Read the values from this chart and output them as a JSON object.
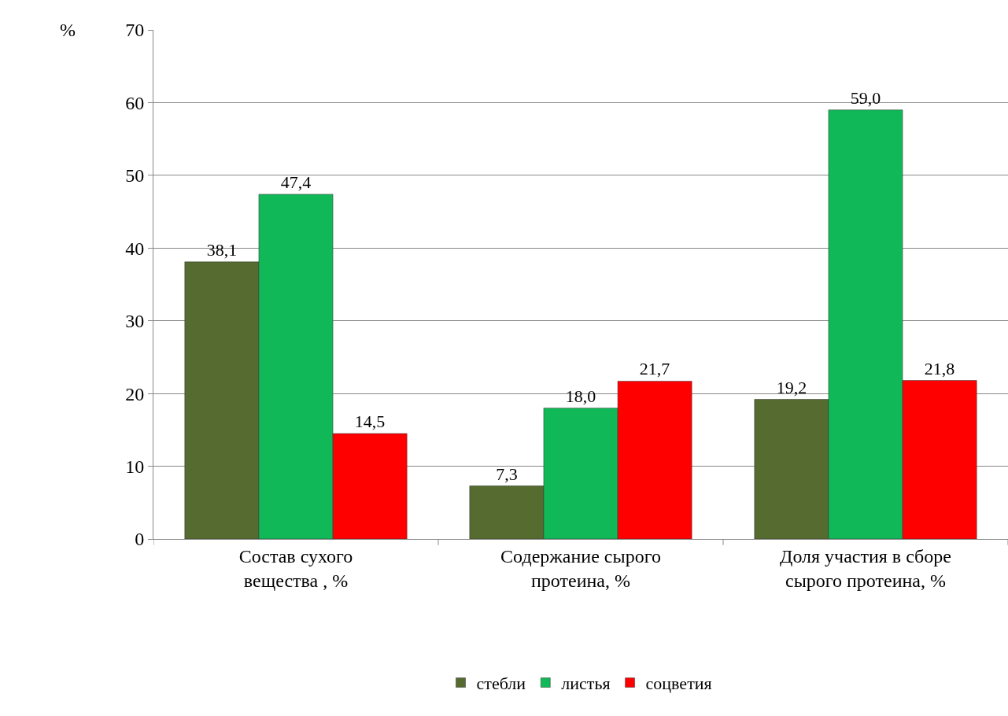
{
  "chart_data": {
    "type": "bar",
    "ylabel": "%",
    "categories": [
      "Состав сухого\nвещества , %",
      "Содержание сырого\nпротеина, %",
      "Доля участия в сборе\nсырого протеина, %"
    ],
    "series": [
      {
        "name": "стебли",
        "color": "#556b2f",
        "values": [
          38.1,
          7.3,
          19.2
        ]
      },
      {
        "name": "листья",
        "color": "#10b858",
        "values": [
          47.4,
          18.0,
          59.0
        ]
      },
      {
        "name": "соцветия",
        "color": "#ff0000",
        "values": [
          14.5,
          21.7,
          21.8
        ]
      }
    ],
    "value_labels": [
      [
        "38,1",
        "7,3",
        "19,2"
      ],
      [
        "47,4",
        "18,0",
        "59,0"
      ],
      [
        "14,5",
        "21,7",
        "21,8"
      ]
    ],
    "ylim": [
      0,
      70
    ],
    "yticks": [
      0,
      10,
      20,
      30,
      40,
      50,
      60,
      70
    ],
    "grid": "y",
    "legend": "bottom"
  }
}
